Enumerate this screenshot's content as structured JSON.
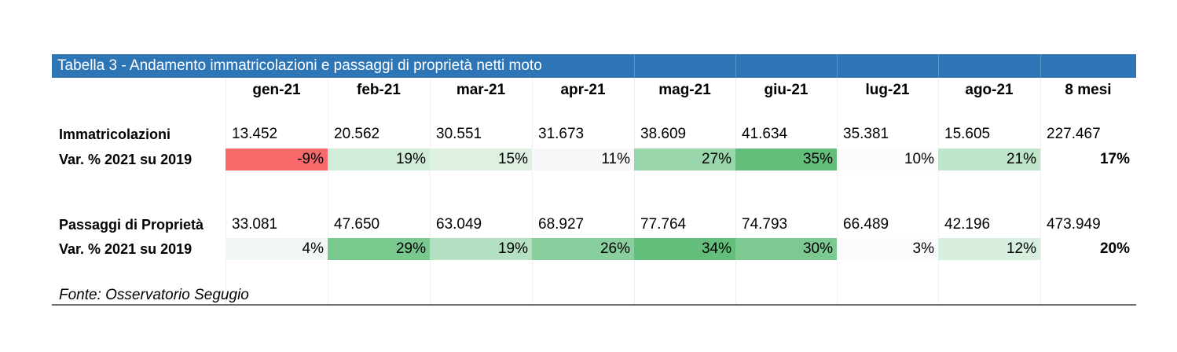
{
  "table": {
    "title": "Tabella 3 - Andamento immatricolazioni  e passaggi di proprietà netti moto",
    "columns": [
      "gen-21",
      "feb-21",
      "mar-21",
      "apr-21",
      "mag-21",
      "giu-21",
      "lug-21",
      "ago-21",
      "8 mesi"
    ],
    "immatricolazioni": {
      "label": "Immatricolazioni",
      "values": [
        "13.452",
        "20.562",
        "30.551",
        "31.673",
        "38.609",
        "41.634",
        "35.381",
        "15.605",
        "227.467"
      ]
    },
    "var_immatricolazioni": {
      "label": "Var. % 2021 su 2019",
      "values": [
        "-9%",
        "19%",
        "15%",
        "11%",
        "27%",
        "35%",
        "10%",
        "21%",
        "17%"
      ],
      "colors": [
        "#f8696b",
        "#d2ecda",
        "#ddf0e2",
        "#f8f8fa",
        "#9ad6ac",
        "#63be7b",
        "#fcfcff",
        "#bfe4ca",
        null
      ]
    },
    "passaggi": {
      "label": "Passaggi di Proprietà",
      "values": [
        "33.081",
        "47.650",
        "63.049",
        "68.927",
        "77.764",
        "74.793",
        "66.489",
        "42.196",
        "473.949"
      ]
    },
    "var_passaggi": {
      "label": "Var. % 2021 su 2019",
      "values": [
        "4%",
        "29%",
        "19%",
        "26%",
        "34%",
        "30%",
        "3%",
        "12%",
        "20%"
      ],
      "colors": [
        "#f1f8f4",
        "#79c88e",
        "#b3e0c0",
        "#89ce9d",
        "#63be7b",
        "#7cc991",
        "#fcfcff",
        "#d8eedf",
        null
      ]
    },
    "source": "Fonte: Osservatorio Segugio"
  }
}
